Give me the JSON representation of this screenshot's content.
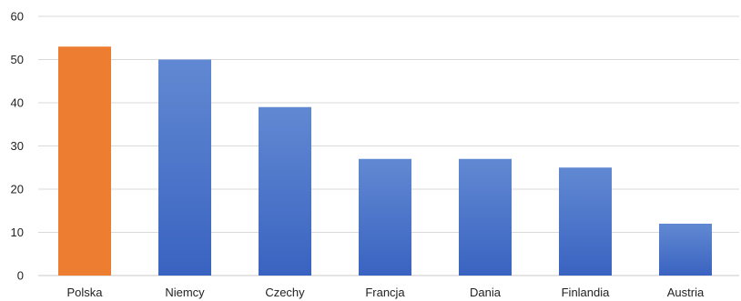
{
  "chart_data": {
    "type": "bar",
    "categories": [
      "Polska",
      "Niemcy",
      "Czechy",
      "Francja",
      "Dania",
      "Finlandia",
      "Austria"
    ],
    "values": [
      53,
      50,
      39,
      27,
      27,
      25,
      12
    ],
    "highlight_category": "Polska",
    "ylim": [
      0,
      60
    ],
    "yticks": [
      0,
      10,
      20,
      30,
      40,
      50,
      60
    ],
    "grid": true,
    "legend": "none",
    "title": "",
    "xlabel": "",
    "ylabel": "",
    "colors": {
      "default_bar_top": "#6189d2",
      "default_bar_bottom": "#3a63c1",
      "highlight_bar": "#ed7d31",
      "gridline": "#d9d9d9",
      "text": "#222222"
    }
  }
}
